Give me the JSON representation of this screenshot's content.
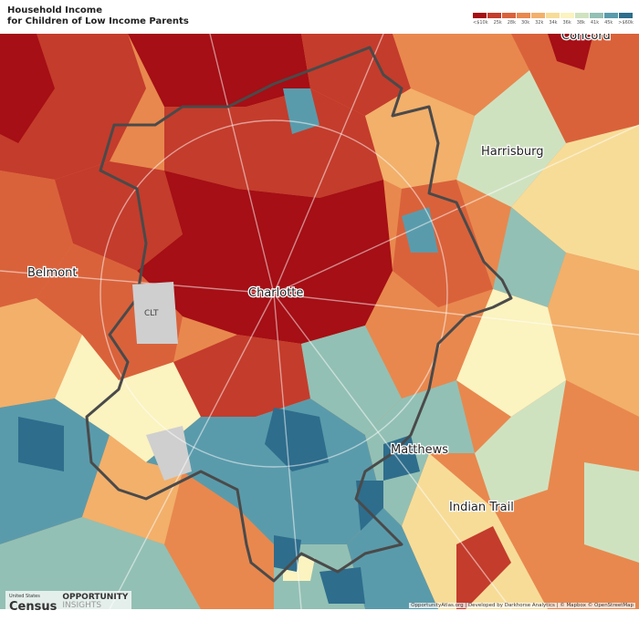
{
  "title": {
    "line1": "Household Income",
    "line2": "for Children of Low Income Parents"
  },
  "legend": {
    "labels": [
      "<$10k",
      "25k",
      "28k",
      "30k",
      "32k",
      "34k",
      "36k",
      "38k",
      "41k",
      "45k",
      ">$60k"
    ],
    "colors": [
      "#a50f15",
      "#c43c2c",
      "#d9623b",
      "#e8884e",
      "#f2b06b",
      "#f7dc98",
      "#fbf3c0",
      "#cfe2c0",
      "#93c0b4",
      "#5a9bab",
      "#2e6d8c"
    ]
  },
  "map": {
    "places": [
      "Harrisburg",
      "Belmont",
      "Charlotte",
      "CLT",
      "Matthews",
      "Indian Trail",
      "Concord"
    ],
    "outline_color": "#4a4a4a",
    "airport_color": "#cfcfcf"
  },
  "logos": {
    "census_top": "United States",
    "census": "Census",
    "census_bottom": "Bureau",
    "oi_line1": "OPPORTUNITY",
    "oi_line2": "INSIGHTS"
  },
  "attribution": "OpportunityAtlas.org | Developed by Darkhorse Analytics | © Mapbox © OpenStreetMap"
}
